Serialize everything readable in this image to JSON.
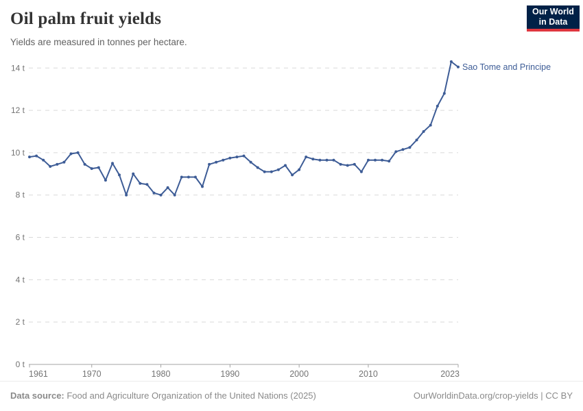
{
  "header": {
    "title": "Oil palm fruit yields",
    "subtitle": "Yields are measured in tonnes per hectare.",
    "logo": {
      "line1": "Our World",
      "line2": "in Data",
      "bg": "#002147",
      "accent": "#e0363f"
    }
  },
  "chart_data": {
    "type": "line",
    "title": "Oil palm fruit yields",
    "ylabel": "tonnes per hectare",
    "unit_suffix": " t",
    "x": [
      1961,
      1962,
      1963,
      1964,
      1965,
      1966,
      1967,
      1968,
      1969,
      1970,
      1971,
      1972,
      1973,
      1974,
      1975,
      1976,
      1977,
      1978,
      1979,
      1980,
      1981,
      1982,
      1983,
      1984,
      1985,
      1986,
      1987,
      1988,
      1989,
      1990,
      1991,
      1992,
      1993,
      1994,
      1995,
      1996,
      1997,
      1998,
      1999,
      2000,
      2001,
      2002,
      2003,
      2004,
      2005,
      2006,
      2007,
      2008,
      2009,
      2010,
      2011,
      2012,
      2013,
      2014,
      2015,
      2016,
      2017,
      2018,
      2019,
      2020,
      2021,
      2022,
      2023
    ],
    "series": [
      {
        "name": "Sao Tome and Principe",
        "color": "#3d5c96",
        "values": [
          9.8,
          9.85,
          9.65,
          9.35,
          9.45,
          9.55,
          9.95,
          10.0,
          9.45,
          9.25,
          9.3,
          8.7,
          9.5,
          8.95,
          8.0,
          9.0,
          8.55,
          8.5,
          8.1,
          8.0,
          8.35,
          8.0,
          8.85,
          8.85,
          8.85,
          8.4,
          9.45,
          9.55,
          9.65,
          9.75,
          9.8,
          9.85,
          9.55,
          9.3,
          9.1,
          9.1,
          9.2,
          9.4,
          8.95,
          9.2,
          9.8,
          9.7,
          9.65,
          9.65,
          9.65,
          9.45,
          9.4,
          9.45,
          9.1,
          9.65,
          9.65,
          9.65,
          9.6,
          10.05,
          10.15,
          10.25,
          10.6,
          11.0,
          11.3,
          12.2,
          12.8,
          14.3,
          14.05
        ]
      }
    ],
    "y_ticks": [
      0,
      2,
      4,
      6,
      8,
      10,
      12,
      14
    ],
    "x_ticks": [
      1961,
      1970,
      1980,
      1990,
      2000,
      2010,
      2023
    ],
    "ylim": [
      0,
      14.6
    ],
    "xlim": [
      1961,
      2023
    ],
    "grid": "horizontal-dashed",
    "legend_position": "line-end-label",
    "colors": {
      "grid": "#d9d9d9",
      "axis": "#a3a3a3",
      "tick_label": "#737373"
    }
  },
  "footer": {
    "source_label": "Data source:",
    "source_text": " Food and Agriculture Organization of the United Nations (2025)",
    "rights": "OurWorldinData.org/crop-yields | CC BY"
  }
}
